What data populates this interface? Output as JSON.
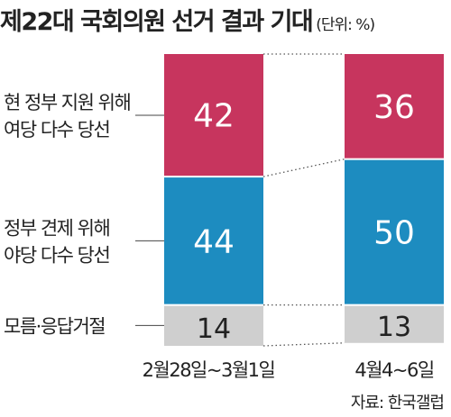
{
  "title": "제22대 국회의원 선거 결과 기대",
  "unit": "(단위: %)",
  "source": "자료: 한국갤럽",
  "colors": {
    "support": "#c7355e",
    "check": "#1d8cc0",
    "unknown": "#cfcfcf"
  },
  "chart_data": {
    "type": "bar",
    "stacked": true,
    "unit": "%",
    "ylim": [
      0,
      100
    ],
    "categories": [
      "2월28일~3월1일",
      "4월4~6일"
    ],
    "series": [
      {
        "name": "현 정부 지원 위해 여당 다수 당선",
        "lines": [
          "현 정부 지원 위해",
          "여당 다수 당선"
        ],
        "values": [
          42,
          36
        ],
        "color": "#c7355e",
        "label_color": "#ffffff"
      },
      {
        "name": "정부 견제 위해 야당 다수 당선",
        "lines": [
          "정부 견제 위해",
          "야당 다수 당선"
        ],
        "values": [
          44,
          50
        ],
        "color": "#1d8cc0",
        "label_color": "#ffffff"
      },
      {
        "name": "모름·응답거절",
        "lines": [
          "모름·응답거절"
        ],
        "values": [
          14,
          13
        ],
        "color": "#cfcfcf",
        "label_color": "#222222"
      }
    ]
  }
}
